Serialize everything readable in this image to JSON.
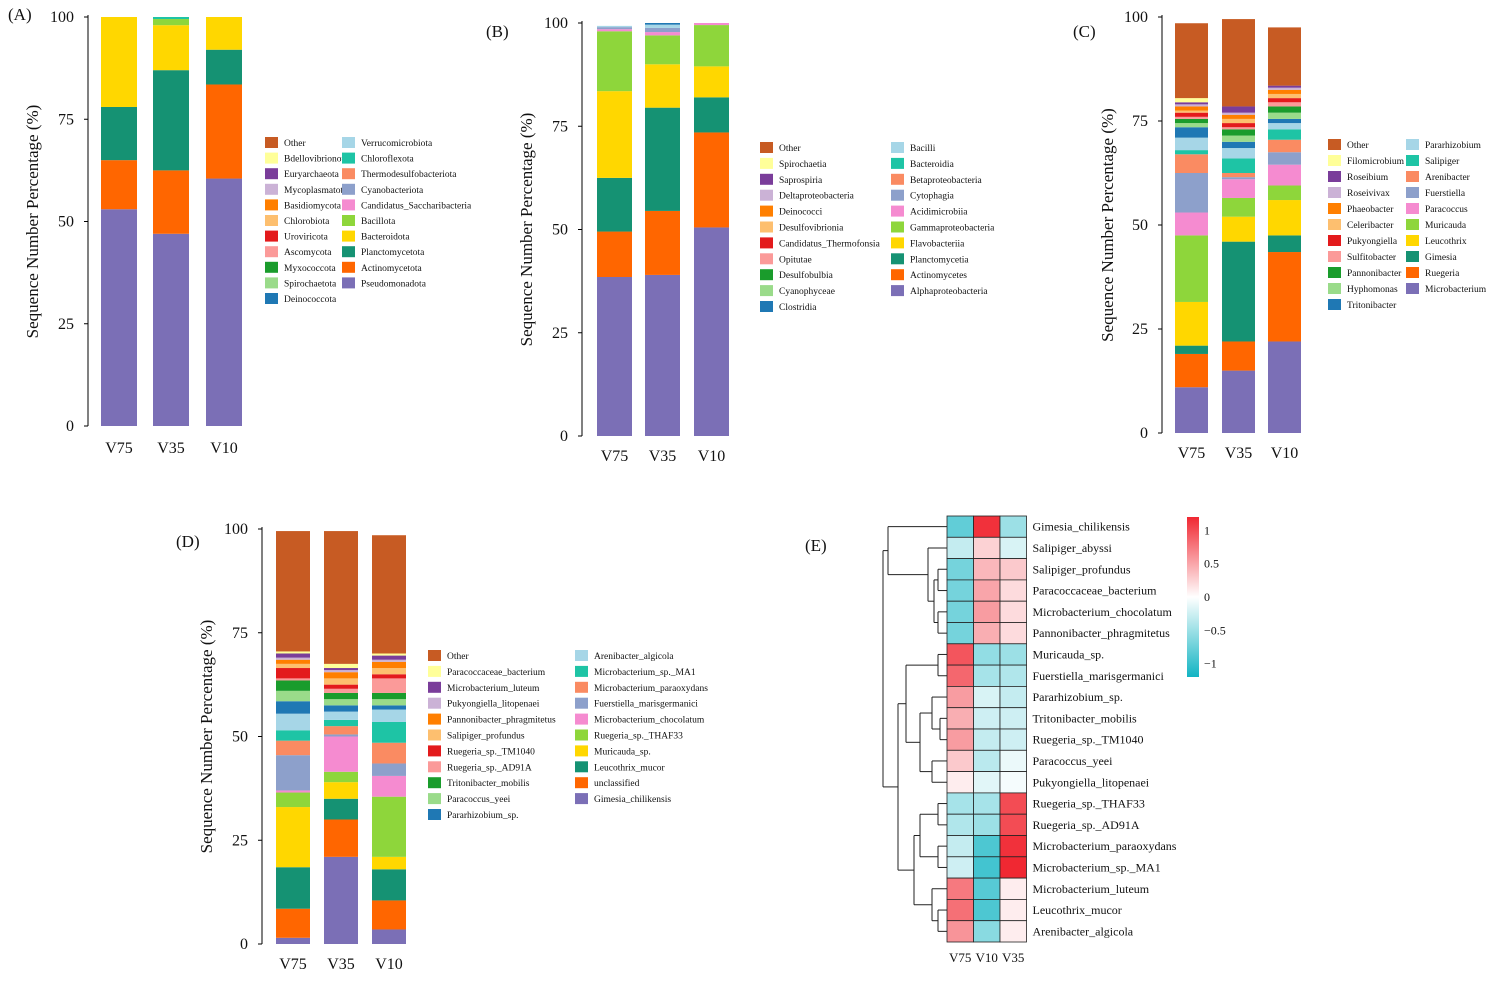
{
  "figure": {
    "colors": {
      "Other": "#C75B23",
      "Bdellovibrionota": "#FFFF99",
      "Euryarchaeota": "#7A3D9A",
      "Mycoplasmatota": "#CBB2D6",
      "Basidiomycota": "#FF7F00",
      "Chlorobiota": "#FDBF6F",
      "Uroviricota": "#E31A1C",
      "Ascomycota": "#FB9A99",
      "Myxococcota": "#1A9C2C",
      "Spirochaetota": "#9ADB8A",
      "Deinococcota": "#1F78B4",
      "Verrucomicrobiota": "#A6D6E7",
      "Chloroflexota": "#1EC4A5",
      "Thermodesulfobacteriota": "#FA8B62",
      "Cyanobacteriota": "#8DA0CB",
      "Candidatus_Saccharibacteria": "#F58BD0",
      "Bacillota": "#8ED63B",
      "Bacteroidota": "#FFD700",
      "Planctomycetota": "#159273",
      "Actinomycetota": "#FF6600",
      "Pseudomonadota": "#7B6FB6"
    }
  },
  "chart_data": [
    {
      "id": "A",
      "type": "bar",
      "stacked": true,
      "label": "(A)",
      "xlabel": "",
      "ylabel": "Sequence Number Percentage (%)",
      "ylim": [
        0,
        100
      ],
      "yticks": [
        "0",
        "25",
        "50",
        "75",
        "100"
      ],
      "categories": [
        "V75",
        "V35",
        "V10"
      ],
      "series": [
        {
          "name": "Pseudomonadota",
          "color": "#7B6FB6",
          "values": [
            53,
            47,
            60.5
          ]
        },
        {
          "name": "Actinomycetota",
          "color": "#FF6600",
          "values": [
            12,
            15.5,
            23
          ]
        },
        {
          "name": "Planctomycetota",
          "color": "#159273",
          "values": [
            13,
            24.5,
            8.5
          ]
        },
        {
          "name": "Bacteroidota",
          "color": "#FFD700",
          "values": [
            22,
            11,
            8
          ]
        },
        {
          "name": "Bacillota",
          "color": "#8ED63B",
          "values": [
            0,
            1.5,
            0
          ]
        },
        {
          "name": "Chloroflexota",
          "color": "#1EC4A5",
          "values": [
            0,
            0.5,
            0
          ]
        }
      ],
      "legend": [
        "Other",
        "Bdellovibrionota",
        "Euryarchaeota",
        "Mycoplasmatota",
        "Basidiomycota",
        "Chlorobiota",
        "Uroviricota",
        "Ascomycota",
        "Myxococcota",
        "Spirochaetota",
        "Deinococcota",
        "Verrucomicrobiota",
        "Chloroflexota",
        "Thermodesulfobacteriota",
        "Cyanobacteriota",
        "Candidatus_Saccharibacteria",
        "Bacillota",
        "Bacteroidota",
        "Planctomycetota",
        "Actinomycetota",
        "Pseudomonadota"
      ]
    },
    {
      "id": "B",
      "type": "bar",
      "stacked": true,
      "label": "(B)",
      "xlabel": "",
      "ylabel": "Sequence Number Percentage (%)",
      "ylim": [
        0,
        100
      ],
      "yticks": [
        "0",
        "25",
        "50",
        "75",
        "100"
      ],
      "categories": [
        "V75",
        "V35",
        "V10"
      ],
      "series": [
        {
          "name": "Alphaproteobacteria",
          "color": "#7B6FB6",
          "values": [
            38.5,
            39,
            50.5
          ]
        },
        {
          "name": "Actinomycetes",
          "color": "#FF6600",
          "values": [
            11,
            15.5,
            23
          ]
        },
        {
          "name": "Planctomycetia",
          "color": "#159273",
          "values": [
            13,
            25,
            8.5
          ]
        },
        {
          "name": "Flavobacteriia",
          "color": "#FFD700",
          "values": [
            21,
            10.5,
            7.5
          ]
        },
        {
          "name": "Gammaproteobacteria",
          "color": "#8ED63B",
          "values": [
            14.5,
            7,
            10
          ]
        },
        {
          "name": "Acidimicrobiia",
          "color": "#F58BD0",
          "values": [
            0.5,
            0.8,
            0.5
          ]
        },
        {
          "name": "Cytophagia",
          "color": "#8DA0CB",
          "values": [
            0.5,
            1,
            0
          ]
        },
        {
          "name": "Bacilli",
          "color": "#A6D6E7",
          "values": [
            0.3,
            0.8,
            0
          ]
        },
        {
          "name": "Clostridia",
          "color": "#1F78B4",
          "values": [
            0,
            0.5,
            0
          ]
        }
      ],
      "legend": [
        "Other",
        "Spirochaetia",
        "Saprospiria",
        "Deltaproteobacteria",
        "Deinococci",
        "Desulfovibrionia",
        "Candidatus_Thermofonsia",
        "Opitutae",
        "Desulfobulbia",
        "Cyanophyceae",
        "Clostridia",
        "Bacilli",
        "Bacteroidia",
        "Betaproteobacteria",
        "Cytophagia",
        "Acidimicrobiia",
        "Gammaproteobacteria",
        "Flavobacteriia",
        "Planctomycetia",
        "Actinomycetes",
        "Alphaproteobacteria"
      ]
    },
    {
      "id": "C",
      "type": "bar",
      "stacked": true,
      "label": "(C)",
      "xlabel": "",
      "ylabel": "Sequence Number Percentage (%)",
      "ylim": [
        0,
        100
      ],
      "yticks": [
        "0",
        "25",
        "50",
        "75",
        "100"
      ],
      "categories": [
        "V75",
        "V35",
        "V10"
      ],
      "series": [
        {
          "name": "Microbacterium",
          "color": "#7B6FB6",
          "values": [
            11,
            15,
            22
          ]
        },
        {
          "name": "Ruegeria",
          "color": "#FF6600",
          "values": [
            8,
            7,
            21.5
          ]
        },
        {
          "name": "Gimesia",
          "color": "#159273",
          "values": [
            2,
            24,
            4
          ]
        },
        {
          "name": "Leucothrix",
          "color": "#FFD700",
          "values": [
            10.5,
            6,
            8.5
          ]
        },
        {
          "name": "Muricauda",
          "color": "#8ED63B",
          "values": [
            16,
            4.5,
            3.5
          ]
        },
        {
          "name": "Paracoccus",
          "color": "#F58BD0",
          "values": [
            5.5,
            4.5,
            5
          ]
        },
        {
          "name": "Fuerstiella",
          "color": "#8DA0CB",
          "values": [
            9.5,
            0.5,
            3
          ]
        },
        {
          "name": "Arenibacter",
          "color": "#FA8B62",
          "values": [
            4.5,
            1,
            3
          ]
        },
        {
          "name": "Salipiger",
          "color": "#1EC4A5",
          "values": [
            1,
            3.5,
            2.5
          ]
        },
        {
          "name": "Pararhizobium",
          "color": "#A6D6E7",
          "values": [
            3,
            2.5,
            1.5
          ]
        },
        {
          "name": "Tritonibacter",
          "color": "#1F78B4",
          "values": [
            2.5,
            1.5,
            1
          ]
        },
        {
          "name": "Hyphomonas",
          "color": "#9ADB8A",
          "values": [
            1,
            1.5,
            1.5
          ]
        },
        {
          "name": "Pannonibacter",
          "color": "#1A9C2C",
          "values": [
            1,
            1.5,
            1.5
          ]
        },
        {
          "name": "Sulfitobacter",
          "color": "#FB9A99",
          "values": [
            0.5,
            0.5,
            1
          ]
        },
        {
          "name": "Pukyongiella",
          "color": "#E31A1C",
          "values": [
            1,
            1,
            1
          ]
        },
        {
          "name": "Celeribacter",
          "color": "#FDBF6F",
          "values": [
            0.5,
            1,
            1
          ]
        },
        {
          "name": "Phaeobacter",
          "color": "#FF7F00",
          "values": [
            1,
            1,
            1
          ]
        },
        {
          "name": "Roseivivax",
          "color": "#CBB2D6",
          "values": [
            0.5,
            0.5,
            0.5
          ]
        },
        {
          "name": "Roseibium",
          "color": "#7A3D9A",
          "values": [
            0.5,
            1.5,
            0.5
          ]
        },
        {
          "name": "Filomicrobium",
          "color": "#FFFF99",
          "values": [
            1,
            0,
            0
          ]
        },
        {
          "name": "Other",
          "color": "#C75B23",
          "values": [
            18,
            21,
            14
          ]
        }
      ],
      "legend": [
        "Other",
        "Filomicrobium",
        "Roseibium",
        "Roseivivax",
        "Phaeobacter",
        "Celeribacter",
        "Pukyongiella",
        "Sulfitobacter",
        "Pannonibacter",
        "Hyphomonas",
        "Tritonibacter",
        "Pararhizobium",
        "Salipiger",
        "Arenibacter",
        "Fuerstiella",
        "Paracoccus",
        "Muricauda",
        "Leucothrix",
        "Gimesia",
        "Ruegeria",
        "Microbacterium"
      ]
    },
    {
      "id": "D",
      "type": "bar",
      "stacked": true,
      "label": "(D)",
      "xlabel": "",
      "ylabel": "Sequence Number Percentage (%)",
      "ylim": [
        0,
        100
      ],
      "yticks": [
        "0",
        "25",
        "50",
        "75",
        "100"
      ],
      "categories": [
        "V75",
        "V35",
        "V10"
      ],
      "series": [
        {
          "name": "Gimesia_chilikensis",
          "color": "#7B6FB6",
          "values": [
            1.5,
            21,
            3.5
          ]
        },
        {
          "name": "unclassified",
          "color": "#FF6600",
          "values": [
            7,
            9,
            7
          ]
        },
        {
          "name": "Leucothrix_mucor",
          "color": "#159273",
          "values": [
            10,
            5,
            7.5
          ]
        },
        {
          "name": "Muricauda_sp.",
          "color": "#FFD700",
          "values": [
            14.5,
            4,
            3
          ]
        },
        {
          "name": "Ruegeria_sp._THAF33",
          "color": "#8ED63B",
          "values": [
            3.5,
            2.5,
            14.5
          ]
        },
        {
          "name": "Microbacterium_chocolatum",
          "color": "#F58BD0",
          "values": [
            0.5,
            8.5,
            5
          ]
        },
        {
          "name": "Fuerstiella_marisgermanici",
          "color": "#8DA0CB",
          "values": [
            8.5,
            0.5,
            3
          ]
        },
        {
          "name": "Microbacterium_paraoxydans",
          "color": "#FA8B62",
          "values": [
            3.5,
            2,
            5
          ]
        },
        {
          "name": "Microbacterium_sp._MA1",
          "color": "#1EC4A5",
          "values": [
            2.5,
            1.5,
            5
          ]
        },
        {
          "name": "Arenibacter_algicola",
          "color": "#A6D6E7",
          "values": [
            4,
            2,
            3
          ]
        },
        {
          "name": "Pararhizobium_sp.",
          "color": "#1F78B4",
          "values": [
            3,
            1.5,
            1
          ]
        },
        {
          "name": "Paracoccus_yeei",
          "color": "#9ADB8A",
          "values": [
            2.5,
            1.5,
            1.5
          ]
        },
        {
          "name": "Tritonibacter_mobilis",
          "color": "#1A9C2C",
          "values": [
            2.5,
            1.5,
            1.5
          ]
        },
        {
          "name": "Ruegeria_sp._AD91A",
          "color": "#FB9A99",
          "values": [
            0.5,
            1,
            3.5
          ]
        },
        {
          "name": "Ruegeria_sp._TM1040",
          "color": "#E31A1C",
          "values": [
            2.5,
            1,
            1
          ]
        },
        {
          "name": "Salipiger_profundus",
          "color": "#FDBF6F",
          "values": [
            1,
            1.5,
            1.5
          ]
        },
        {
          "name": "Pannonibacter_phragmitetus",
          "color": "#FF7F00",
          "values": [
            1,
            1.5,
            1.5
          ]
        },
        {
          "name": "Pukyongiella_litopenaei",
          "color": "#CBB2D6",
          "values": [
            0.5,
            0.5,
            0.5
          ]
        },
        {
          "name": "Microbacterium_luteum",
          "color": "#7A3D9A",
          "values": [
            1,
            0.5,
            1
          ]
        },
        {
          "name": "Paracoccaceae_bacterium",
          "color": "#FFFF99",
          "values": [
            0.5,
            1,
            0.5
          ]
        },
        {
          "name": "Other",
          "color": "#C75B23",
          "values": [
            29,
            32,
            28.5
          ]
        }
      ],
      "legend": [
        "Other",
        "Paracoccaceae_bacterium",
        "Microbacterium_luteum",
        "Pukyongiella_litopenaei",
        "Pannonibacter_phragmitetus",
        "Salipiger_profundus",
        "Ruegeria_sp._TM1040",
        "Ruegeria_sp._AD91A",
        "Tritonibacter_mobilis",
        "Paracoccus_yeei",
        "Pararhizobium_sp.",
        "Arenibacter_algicola",
        "Microbacterium_sp._MA1",
        "Microbacterium_paraoxydans",
        "Fuerstiella_marisgermanici",
        "Microbacterium_chocolatum",
        "Ruegeria_sp._THAF33",
        "Muricauda_sp.",
        "Leucothrix_mucor",
        "unclassified",
        "Gimesia_chilikensis"
      ]
    },
    {
      "id": "E",
      "type": "heatmap",
      "label": "(E)",
      "columns": [
        "V75",
        "V10",
        "V35"
      ],
      "rows": [
        "Gimesia_chilikensis",
        "Salipiger_abyssi",
        "Salipiger_profundus",
        "Paracoccaceae_bacterium",
        "Microbacterium_chocolatum",
        "Pannonibacter_phragmitetus",
        "Muricauda_sp.",
        "Fuerstiella_marisgermanici",
        "Pararhizobium_sp.",
        "Tritonibacter_mobilis",
        "Ruegeria_sp._TM1040",
        "Paracoccus_yeei",
        "Pukyongiella_litopenaei",
        "Ruegeria_sp._THAF33",
        "Ruegeria_sp._AD91A",
        "Microbacterium_paraoxydans",
        "Microbacterium_sp._MA1",
        "Microbacterium_luteum",
        "Leucothrix_mucor",
        "Arenibacter_algicola"
      ],
      "values": [
        [
          -0.8,
          1.15,
          -0.5
        ],
        [
          -0.3,
          0.25,
          -0.2
        ],
        [
          -0.7,
          0.4,
          0.3
        ],
        [
          -0.7,
          0.5,
          0.2
        ],
        [
          -0.7,
          0.55,
          0.2
        ],
        [
          -0.7,
          0.45,
          0.2
        ],
        [
          0.95,
          -0.55,
          -0.5
        ],
        [
          0.85,
          -0.45,
          -0.4
        ],
        [
          0.55,
          -0.2,
          -0.3
        ],
        [
          0.45,
          -0.25,
          -0.25
        ],
        [
          0.55,
          -0.3,
          -0.25
        ],
        [
          0.3,
          -0.35,
          -0.1
        ],
        [
          0.1,
          -0.15,
          -0.05
        ],
        [
          -0.45,
          -0.45,
          1.0
        ],
        [
          -0.4,
          -0.5,
          1.0
        ],
        [
          -0.3,
          -0.9,
          1.15
        ],
        [
          -0.25,
          -0.95,
          1.2
        ],
        [
          0.75,
          -0.85,
          0.1
        ],
        [
          0.8,
          -0.9,
          0.1
        ],
        [
          0.6,
          -0.6,
          0.1
        ]
      ],
      "colorbar_ticks": [
        "1",
        "0.5",
        "0",
        "−0.5",
        "−1"
      ],
      "colorbar_values": [
        1,
        0.5,
        0,
        -0.5,
        -1
      ],
      "colorbar_range": [
        -1.2,
        1.2
      ]
    }
  ]
}
